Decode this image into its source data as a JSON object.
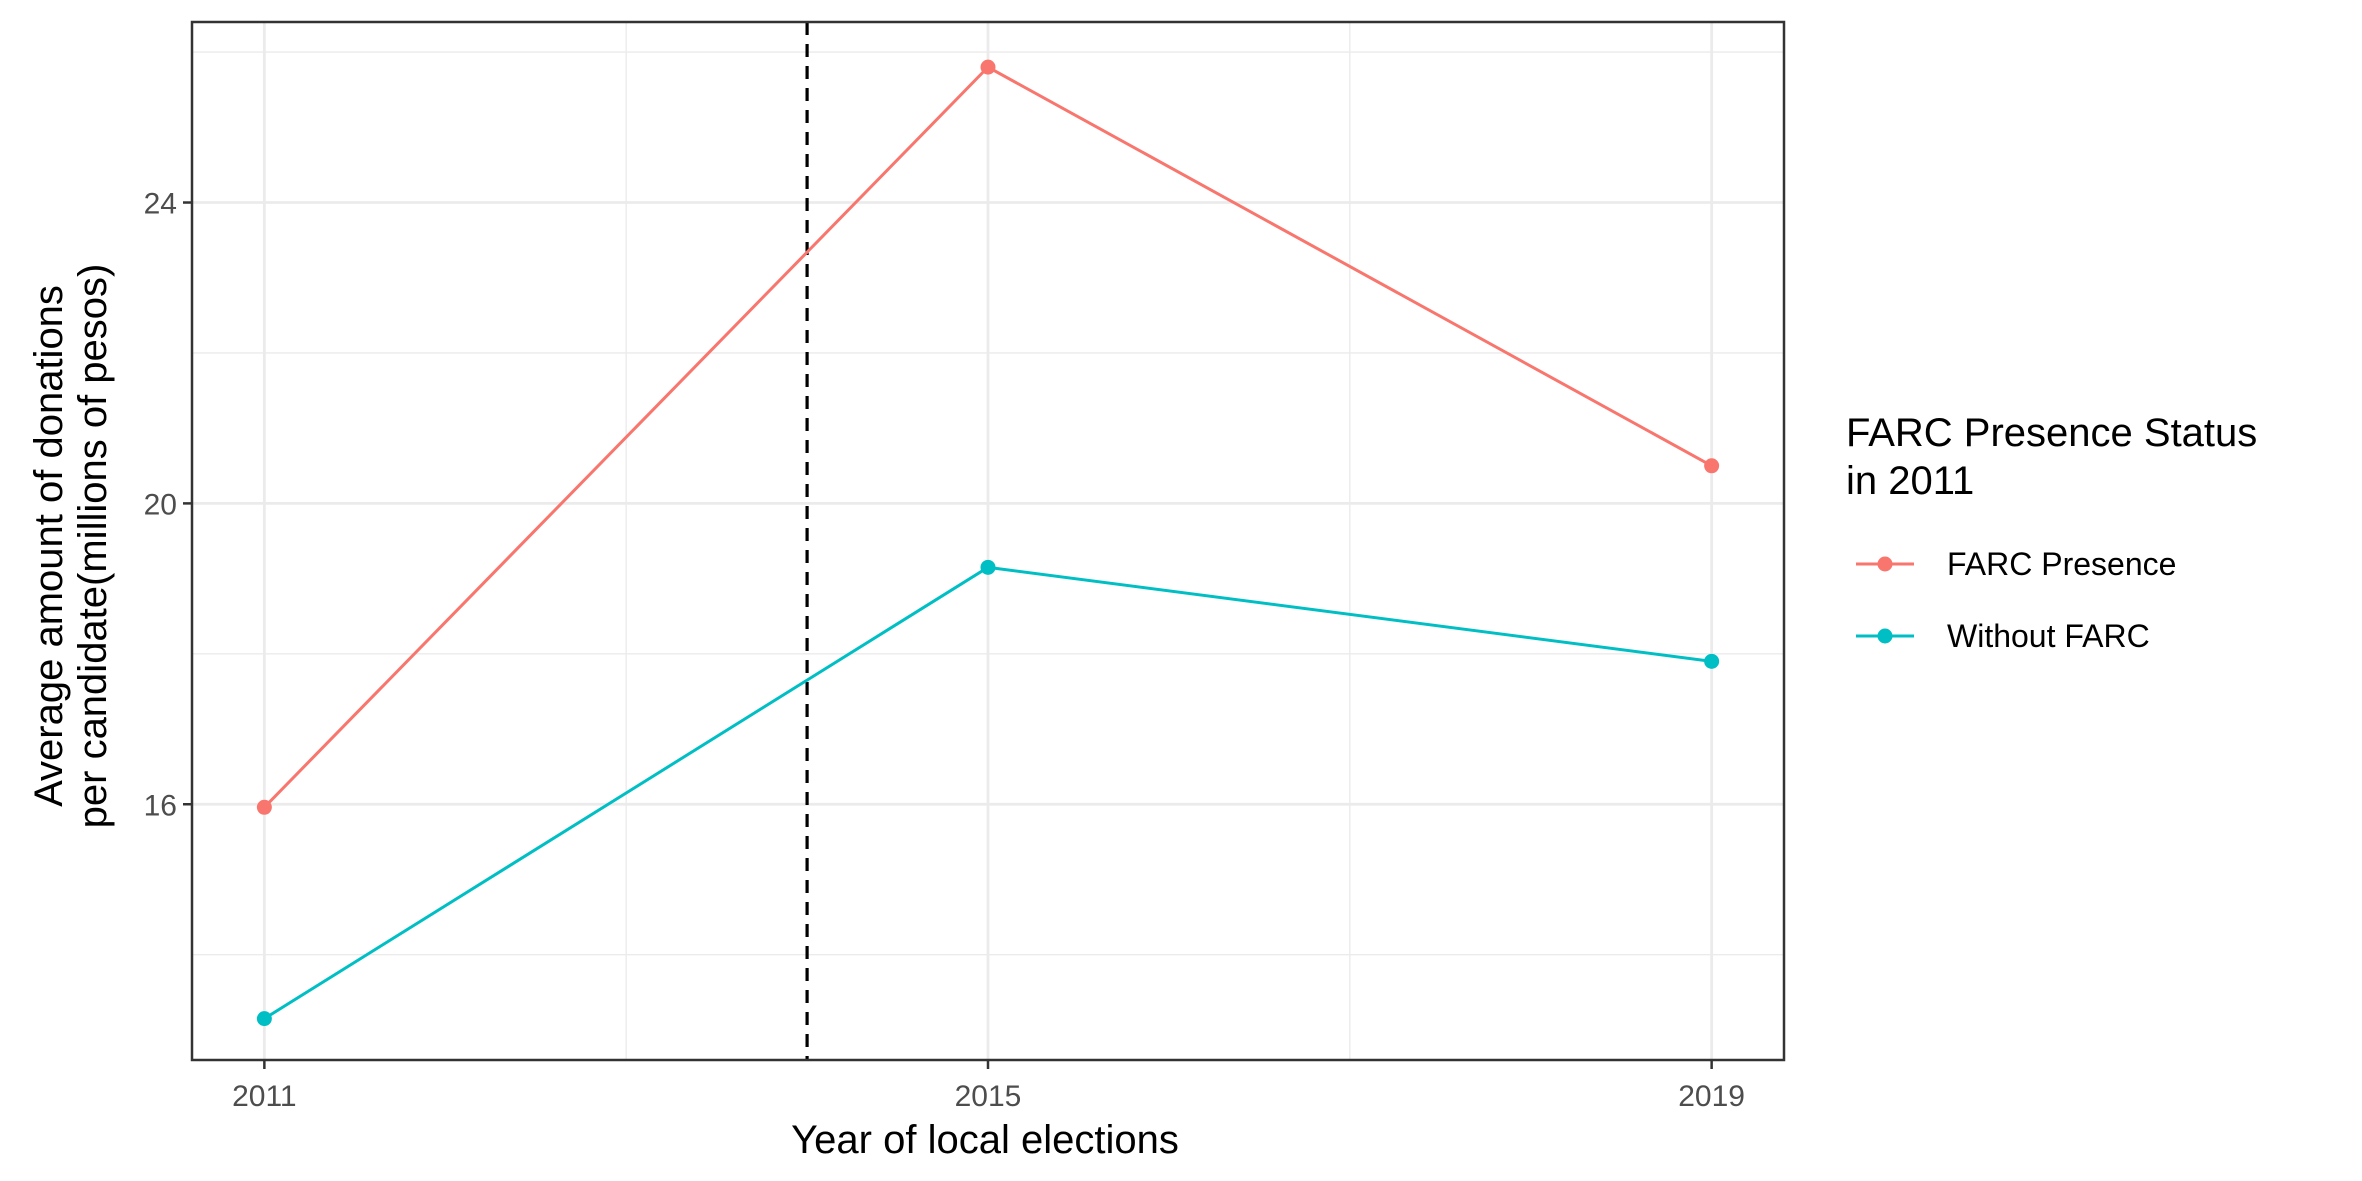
{
  "chart_data": {
    "type": "line",
    "x": [
      2011,
      2015,
      2019
    ],
    "x_tick_labels": [
      "2011",
      "2015",
      "2019"
    ],
    "xlim": [
      2010.6,
      2019.4
    ],
    "ylim": [
      12.6,
      26.4
    ],
    "y_ticks": [
      16,
      20,
      24
    ],
    "y_tick_labels": [
      "16",
      "20",
      "24"
    ],
    "xlabel": "Year of local elections",
    "ylabel_line1": "Average amount of donations",
    "ylabel_line2": "per candidate(millions of pesos)",
    "legend_title_line1": "FARC Presence Status",
    "legend_title_line2": "in 2011",
    "legend_position": "right",
    "grid": true,
    "vline": {
      "x": 2014,
      "style": "dashed",
      "color": "#000000"
    },
    "series": [
      {
        "name": "FARC Presence",
        "color": "#F8766D",
        "values": [
          15.96,
          25.8,
          20.5
        ]
      },
      {
        "name": "Without FARC",
        "color": "#00BFC4",
        "values": [
          13.15,
          19.15,
          17.9
        ]
      }
    ]
  }
}
